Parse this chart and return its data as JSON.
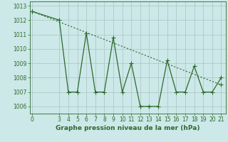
{
  "x": [
    0,
    3,
    4,
    5,
    6,
    7,
    8,
    9,
    10,
    11,
    12,
    13,
    14,
    15,
    16,
    17,
    18,
    19,
    20,
    21
  ],
  "y": [
    1012.6,
    1012.0,
    1007.0,
    1007.0,
    1011.1,
    1007.0,
    1007.0,
    1010.8,
    1007.0,
    1009.0,
    1006.0,
    1006.0,
    1006.0,
    1009.2,
    1007.0,
    1007.0,
    1008.8,
    1007.0,
    1007.0,
    1008.0
  ],
  "trend_x": [
    0,
    21
  ],
  "trend_y": [
    1012.6,
    1007.5
  ],
  "line_color": "#2d6a2d",
  "bg_color": "#cce8e8",
  "grid_color": "#b0c8c8",
  "xlabel": "Graphe pression niveau de la mer (hPa)",
  "ylim": [
    1005.5,
    1013.3
  ],
  "xlim": [
    -0.3,
    21.5
  ],
  "yticks": [
    1006,
    1007,
    1008,
    1009,
    1010,
    1011,
    1012,
    1013
  ],
  "xticks": [
    0,
    3,
    4,
    5,
    6,
    7,
    8,
    9,
    10,
    11,
    12,
    13,
    14,
    15,
    16,
    17,
    18,
    19,
    20,
    21
  ],
  "tick_fontsize": 5.5,
  "xlabel_fontsize": 6.5
}
